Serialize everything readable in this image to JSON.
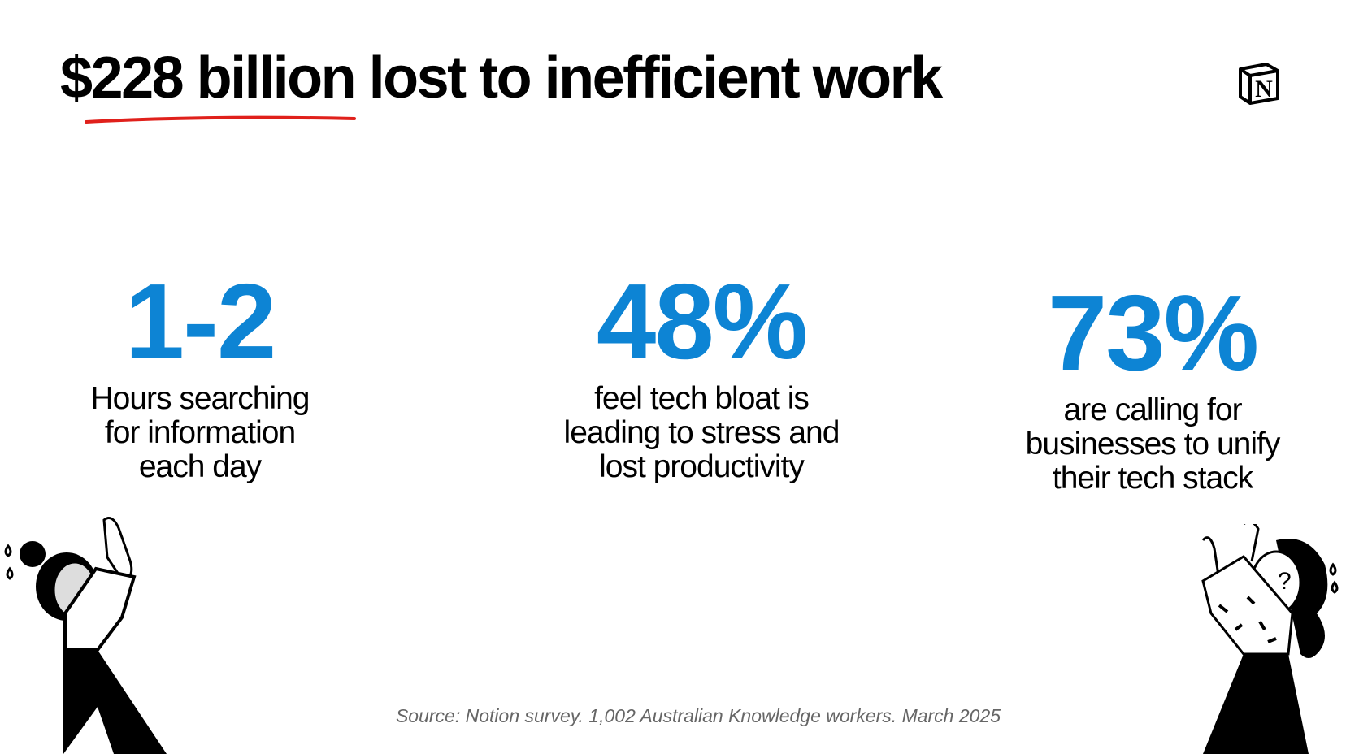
{
  "title": "$228 billion lost to inefficient work",
  "brand_logo": "Notion",
  "accent_color": "#0d84d4",
  "underline_color": "#e0201b",
  "stats": [
    {
      "value": "1-2",
      "label_lines": [
        "Hours searching",
        "for information",
        "each day"
      ]
    },
    {
      "value": "48%",
      "label_lines": [
        "feel tech bloat is",
        "leading to stress and",
        "lost productivity"
      ]
    },
    {
      "value": "73%",
      "label_lines": [
        "are calling for",
        "businesses to unify",
        "their tech stack"
      ]
    }
  ],
  "source": "Source: Notion survey. 1,002 Australian Knowledge workers. March 2025",
  "illustrations": [
    "stressed-person-left",
    "stressed-person-right"
  ]
}
